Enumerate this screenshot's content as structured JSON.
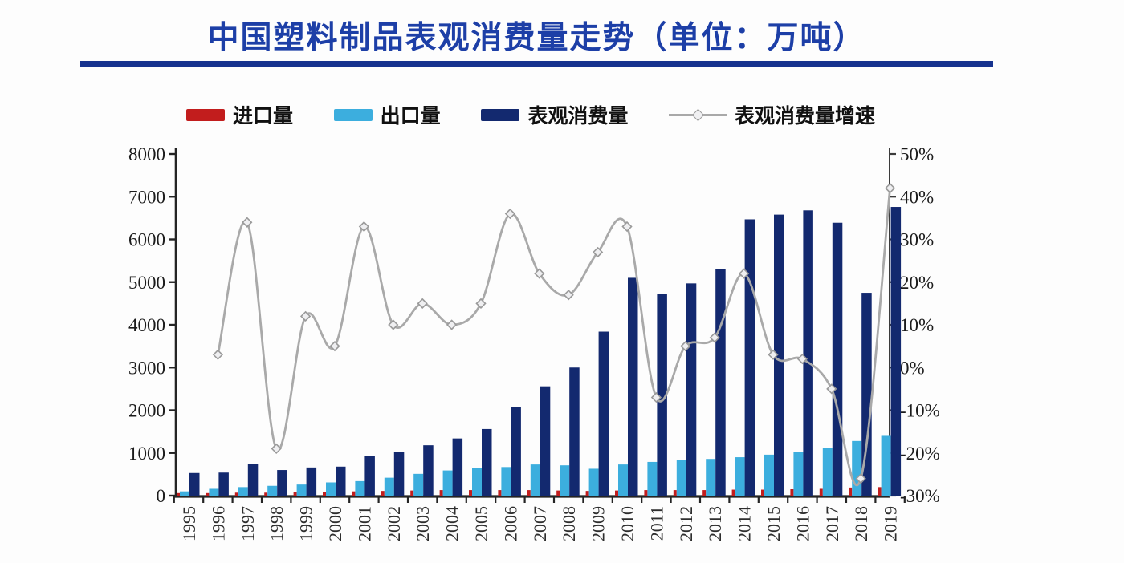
{
  "title": "中国塑料制品表观消费量走势（单位：万吨）",
  "colors": {
    "title": "#1d3fa7",
    "rule": "#16338f",
    "import": "#c21d1d",
    "export": "#3caede",
    "consumption": "#13296f",
    "growth_line": "#a9a9a9",
    "marker_fill": "#efeff1",
    "marker_stroke": "#9a9a9a",
    "axis": "#242424",
    "axis_right": "#3c3c3c",
    "tick_text": "#1b1b1b",
    "x_text": "#2e2e2e",
    "background": "#fdfdfd"
  },
  "legend": [
    {
      "key": "import",
      "label": "进口量",
      "swatch": "bar"
    },
    {
      "key": "export",
      "label": "出口量",
      "swatch": "bar"
    },
    {
      "key": "consumption",
      "label": "表观消费量",
      "swatch": "bar"
    },
    {
      "key": "growth",
      "label": "表观消费量增速",
      "swatch": "line"
    }
  ],
  "chart_data": {
    "type": "bar",
    "subtype": "grouped-bars-with-line",
    "title": "中国塑料制品表观消费量走势（单位：万吨）",
    "categories": [
      "1995",
      "1996",
      "1997",
      "1998",
      "1999",
      "2000",
      "2001",
      "2002",
      "2003",
      "2004",
      "2005",
      "2006",
      "2007",
      "2008",
      "2009",
      "2010",
      "2011",
      "2012",
      "2013",
      "2014",
      "2015",
      "2016",
      "2017",
      "2018",
      "2019"
    ],
    "series": [
      {
        "name": "进口量",
        "type": "bar",
        "axis": "left",
        "color_key": "import",
        "values": [
          60,
          60,
          70,
          70,
          80,
          90,
          100,
          110,
          120,
          130,
          130,
          130,
          130,
          120,
          110,
          120,
          130,
          130,
          130,
          140,
          140,
          150,
          160,
          190,
          200
        ]
      },
      {
        "name": "出口量",
        "type": "bar",
        "axis": "left",
        "color_key": "export",
        "values": [
          100,
          160,
          200,
          230,
          260,
          310,
          340,
          420,
          510,
          590,
          640,
          670,
          730,
          710,
          630,
          730,
          790,
          830,
          860,
          900,
          960,
          1030,
          1120,
          1280,
          1400
        ]
      },
      {
        "name": "表观消费量",
        "type": "bar",
        "axis": "left",
        "color_key": "consumption",
        "values": [
          530,
          540,
          745,
          600,
          660,
          680,
          930,
          1030,
          1180,
          1340,
          1560,
          2080,
          2560,
          3000,
          3840,
          5100,
          4720,
          4970,
          5310,
          6470,
          6580,
          6680,
          6390,
          4750,
          6760
        ]
      },
      {
        "name": "表观消费量增速",
        "type": "line",
        "axis": "right",
        "unit": "%",
        "color_key": "growth_line",
        "values": [
          null,
          3,
          34,
          -19,
          12,
          5,
          33,
          10,
          15,
          10,
          15,
          36,
          22,
          17,
          27,
          33,
          -7,
          5,
          7,
          22,
          3,
          2,
          -5,
          -26,
          42
        ]
      }
    ],
    "left_axis": {
      "min": 0,
      "max": 8000,
      "step": 1000,
      "tick_labels": [
        "0",
        "1000",
        "2000",
        "3000",
        "4000",
        "5000",
        "6000",
        "7000",
        "8000"
      ]
    },
    "right_axis": {
      "min": -30,
      "max": 50,
      "step": 10,
      "unit": "%",
      "tick_labels": [
        "-30%",
        "-20%",
        "-10%",
        "0%",
        "10%",
        "20%",
        "30%",
        "40%",
        "50%"
      ]
    },
    "grid": false,
    "legend_position": "top",
    "x_tick_label_rotation": -90
  }
}
